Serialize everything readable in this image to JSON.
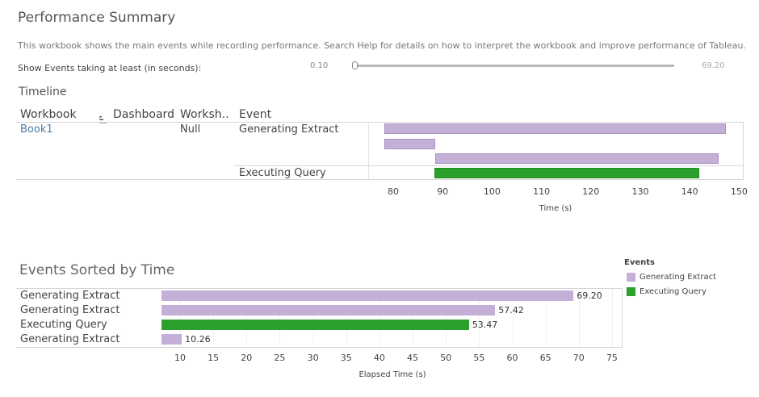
{
  "header": {
    "title": "Performance Summary",
    "description": "This workbook shows the main events while recording performance. Search Help for details on how to interpret the workbook and improve performance of Tableau."
  },
  "filter": {
    "label": "Show Events taking at least (in seconds):",
    "min_label": "0.10",
    "max_label": "69.20",
    "value": 0.1
  },
  "timeline": {
    "title": "Timeline",
    "columns": [
      "Workbook",
      "Dashboard",
      "Worksh..",
      "Event"
    ],
    "sort_icon": "sort-icon",
    "rows": {
      "workbook": "Book1",
      "worksheet": "Null",
      "events": [
        "Generating Extract",
        "Executing Query"
      ]
    },
    "bars": [
      {
        "event": "Generating Extract",
        "start": 78.2,
        "end": 147.4
      },
      {
        "event": "Generating Extract",
        "start": 78.2,
        "end": 88.46
      },
      {
        "event": "Generating Extract",
        "start": 88.5,
        "end": 145.92
      },
      {
        "event": "Executing Query",
        "start": 88.4,
        "end": 141.87
      }
    ],
    "axis": {
      "title": "Time (s)",
      "ticks": [
        "80",
        "90",
        "100",
        "110",
        "120",
        "130",
        "140",
        "150"
      ],
      "min": 75,
      "max": 150
    }
  },
  "events_sorted": {
    "title": "Events Sorted by Time",
    "rows": [
      {
        "label": "Generating Extract",
        "value": 69.2,
        "value_label": "69.20",
        "event": "Generating Extract"
      },
      {
        "label": "Generating Extract",
        "value": 57.42,
        "value_label": "57.42",
        "event": "Generating Extract"
      },
      {
        "label": "Executing Query",
        "value": 53.47,
        "value_label": "53.47",
        "event": "Executing Query"
      },
      {
        "label": "Generating Extract",
        "value": 10.26,
        "value_label": "10.26",
        "event": "Generating Extract"
      }
    ],
    "axis": {
      "title": "Elapsed Time (s)",
      "ticks": [
        "10",
        "15",
        "20",
        "25",
        "30",
        "35",
        "40",
        "45",
        "50",
        "55",
        "60",
        "65",
        "70",
        "75"
      ],
      "min": 7,
      "max": 76
    }
  },
  "legend": {
    "title": "Events",
    "items": [
      {
        "label": "Generating Extract",
        "color": "#c4b0d6"
      },
      {
        "label": "Executing Query",
        "color": "#2ca02c"
      }
    ]
  },
  "colors": {
    "Generating Extract": "#c4b0d6",
    "Executing Query": "#2ca02c",
    "link": "#4e79a7"
  }
}
